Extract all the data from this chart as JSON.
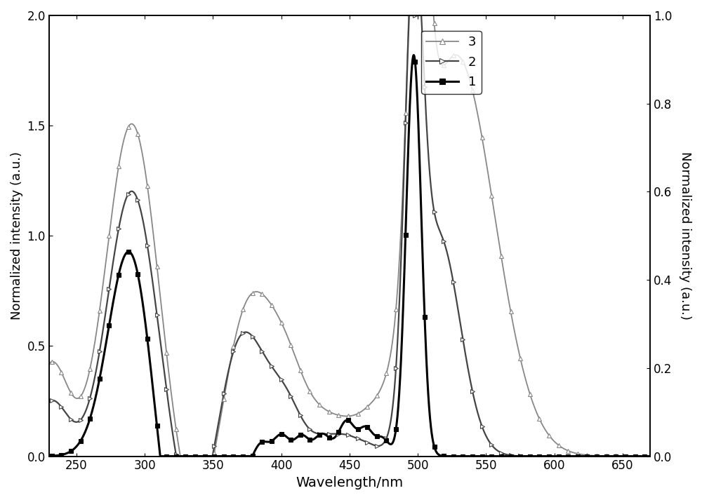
{
  "xlabel": "Wavelength/nm",
  "ylabel_left": "Normalized intensity (a.u.)",
  "ylabel_right": "Normalized intensity (a.u.)",
  "xlim": [
    230,
    670
  ],
  "ylim_left": [
    0.0,
    2.0
  ],
  "ylim_right": [
    0.0,
    1.0
  ],
  "xticks": [
    250,
    300,
    350,
    400,
    450,
    500,
    550,
    600,
    650
  ],
  "yticks_left": [
    0.0,
    0.5,
    1.0,
    1.5,
    2.0
  ],
  "yticks_right": [
    0.0,
    0.2,
    0.4,
    0.6,
    0.8,
    1.0
  ],
  "background_color": "#ffffff",
  "curve3_color": "#888888",
  "curve2_color": "#444444",
  "curve1_color": "#000000",
  "linewidths": [
    1.3,
    1.6,
    2.2
  ],
  "marker_step": 7
}
